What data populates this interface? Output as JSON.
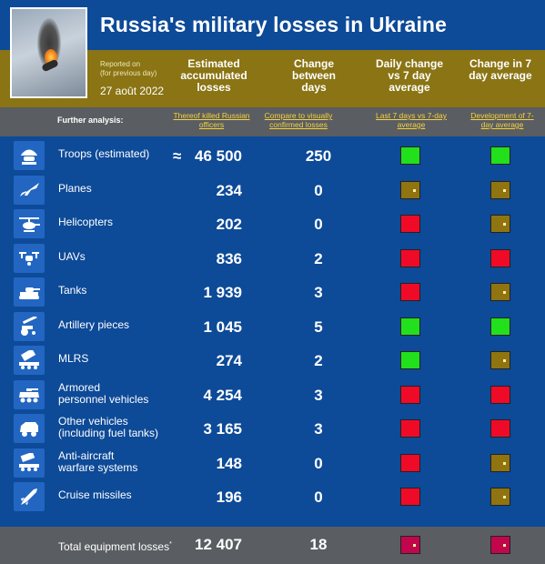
{
  "header": {
    "title": "Russia's military losses in Ukraine",
    "reported_on": "Reported on\n(for previous day)",
    "date": "27 août 2022",
    "col_estimated": "Estimated accumulated losses",
    "col_change": "Change between days",
    "col_daily": "Daily change vs 7 day average",
    "col_change7": "Change in 7 day average"
  },
  "subheader": {
    "further": "Further analysis:",
    "link1": "Thereof killed Russian officers",
    "link2": "Compare to visually confirmed losses",
    "link3": "Last 7 days vs 7-day average",
    "link4": "Development of 7-day average"
  },
  "colors": {
    "green": "#22e01c",
    "red": "#ef0b28",
    "olive": "#8f7410",
    "crimson": "#c2064e"
  },
  "rows": [
    {
      "icon": "soldier-icon",
      "label": "Troops (estimated)",
      "approx": "≈",
      "value": "46 500",
      "change": "250",
      "daily": "green",
      "trend": "green"
    },
    {
      "icon": "plane-icon",
      "label": "Planes",
      "value": "234",
      "change": "0",
      "daily": "olive",
      "trend": "olive"
    },
    {
      "icon": "helicopter-icon",
      "label": "Helicopters",
      "value": "202",
      "change": "0",
      "daily": "red",
      "trend": "olive"
    },
    {
      "icon": "drone-icon",
      "label": "UAVs",
      "value": "836",
      "change": "2",
      "daily": "red",
      "trend": "red"
    },
    {
      "icon": "tank-icon",
      "label": "Tanks",
      "value": "1 939",
      "change": "3",
      "daily": "red",
      "trend": "olive"
    },
    {
      "icon": "artillery-icon",
      "label": "Artillery pieces",
      "value": "1 045",
      "change": "5",
      "daily": "green",
      "trend": "green"
    },
    {
      "icon": "mlrs-icon",
      "label": "MLRS",
      "value": "274",
      "change": "2",
      "daily": "green",
      "trend": "olive"
    },
    {
      "icon": "apc-icon",
      "label": "Armored\npersonnel vehicles",
      "value": "4 254",
      "change": "3",
      "daily": "red",
      "trend": "red"
    },
    {
      "icon": "vehicle-icon",
      "label": "Other vehicles\n(including fuel tanks)",
      "value": "3 165",
      "change": "3",
      "daily": "red",
      "trend": "red"
    },
    {
      "icon": "anti-aircraft-icon",
      "label": "Anti-aircraft\nwarfare systems",
      "value": "148",
      "change": "0",
      "daily": "red",
      "trend": "olive"
    },
    {
      "icon": "missile-icon",
      "label": "Cruise missiles",
      "value": "196",
      "change": "0",
      "daily": "red",
      "trend": "olive"
    }
  ],
  "total": {
    "label": "Total equipment losses",
    "mark": "*",
    "value": "12 407",
    "change": "18",
    "daily": "crimson",
    "trend": "crimson"
  }
}
